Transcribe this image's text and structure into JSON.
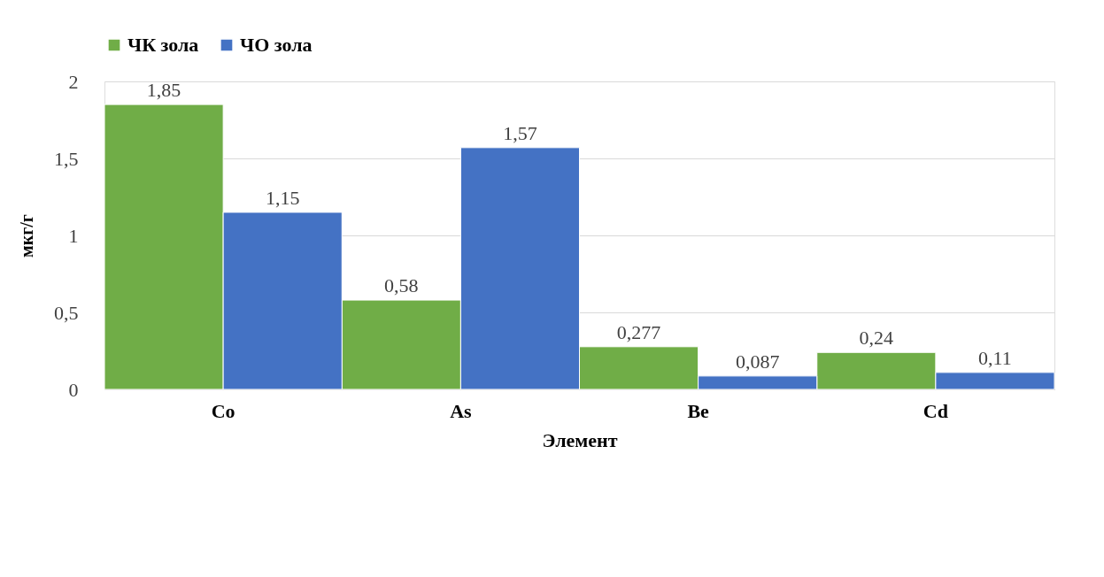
{
  "chart_data": {
    "type": "bar",
    "xlabel": "Элемент",
    "ylabel": "мкг/г",
    "categories": [
      "Co",
      "As",
      "Be",
      "Cd"
    ],
    "series": [
      {
        "name": "ЧК зола",
        "color": "#70ad47",
        "values": [
          1.85,
          0.58,
          0.277,
          0.24
        ],
        "value_labels": [
          "1,85",
          "0,58",
          "0,277",
          "0,24"
        ]
      },
      {
        "name": "ЧО зола",
        "color": "#4472c4",
        "values": [
          1.15,
          1.57,
          0.087,
          0.11
        ],
        "value_labels": [
          "1,15",
          "1,57",
          "0,087",
          "0,11"
        ]
      }
    ],
    "ylim": [
      0,
      2
    ],
    "yticks": [
      0,
      {
        "value": 0.5,
        "label": "0,5"
      },
      1,
      {
        "value": 1.5,
        "label": "1,5"
      },
      2
    ],
    "grid": "y",
    "legend": "top"
  }
}
